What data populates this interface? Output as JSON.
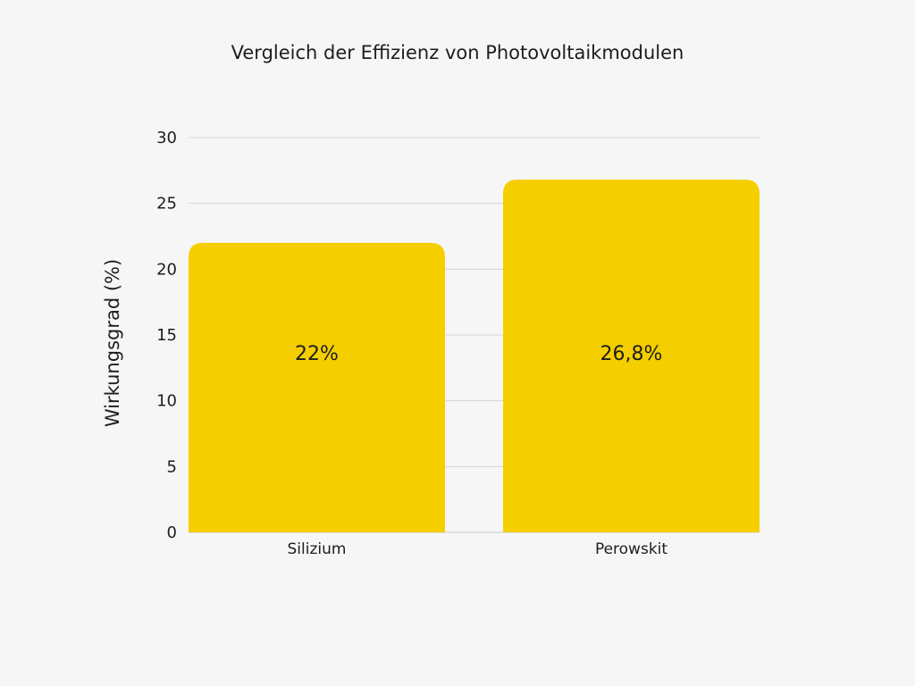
{
  "page": {
    "background_color": "#F6F6F6"
  },
  "chart_data": {
    "type": "bar",
    "title": "Vergleich der Effizienz von Photovoltaikmodulen",
    "xlabel": "",
    "ylabel": "Wirkungsgrad (%)",
    "categories": [
      "Silizium",
      "Perowskit"
    ],
    "values": [
      22,
      26.8
    ],
    "data_labels": [
      "22%",
      "26,8%"
    ],
    "ylim": [
      0,
      30
    ],
    "yticks": [
      0,
      5,
      10,
      15,
      20,
      25,
      30
    ],
    "grid": true,
    "legend": "none",
    "bar_color": "#F5CE00",
    "grid_color": "#D4D4D4",
    "text_color": "#1E1E1E"
  }
}
